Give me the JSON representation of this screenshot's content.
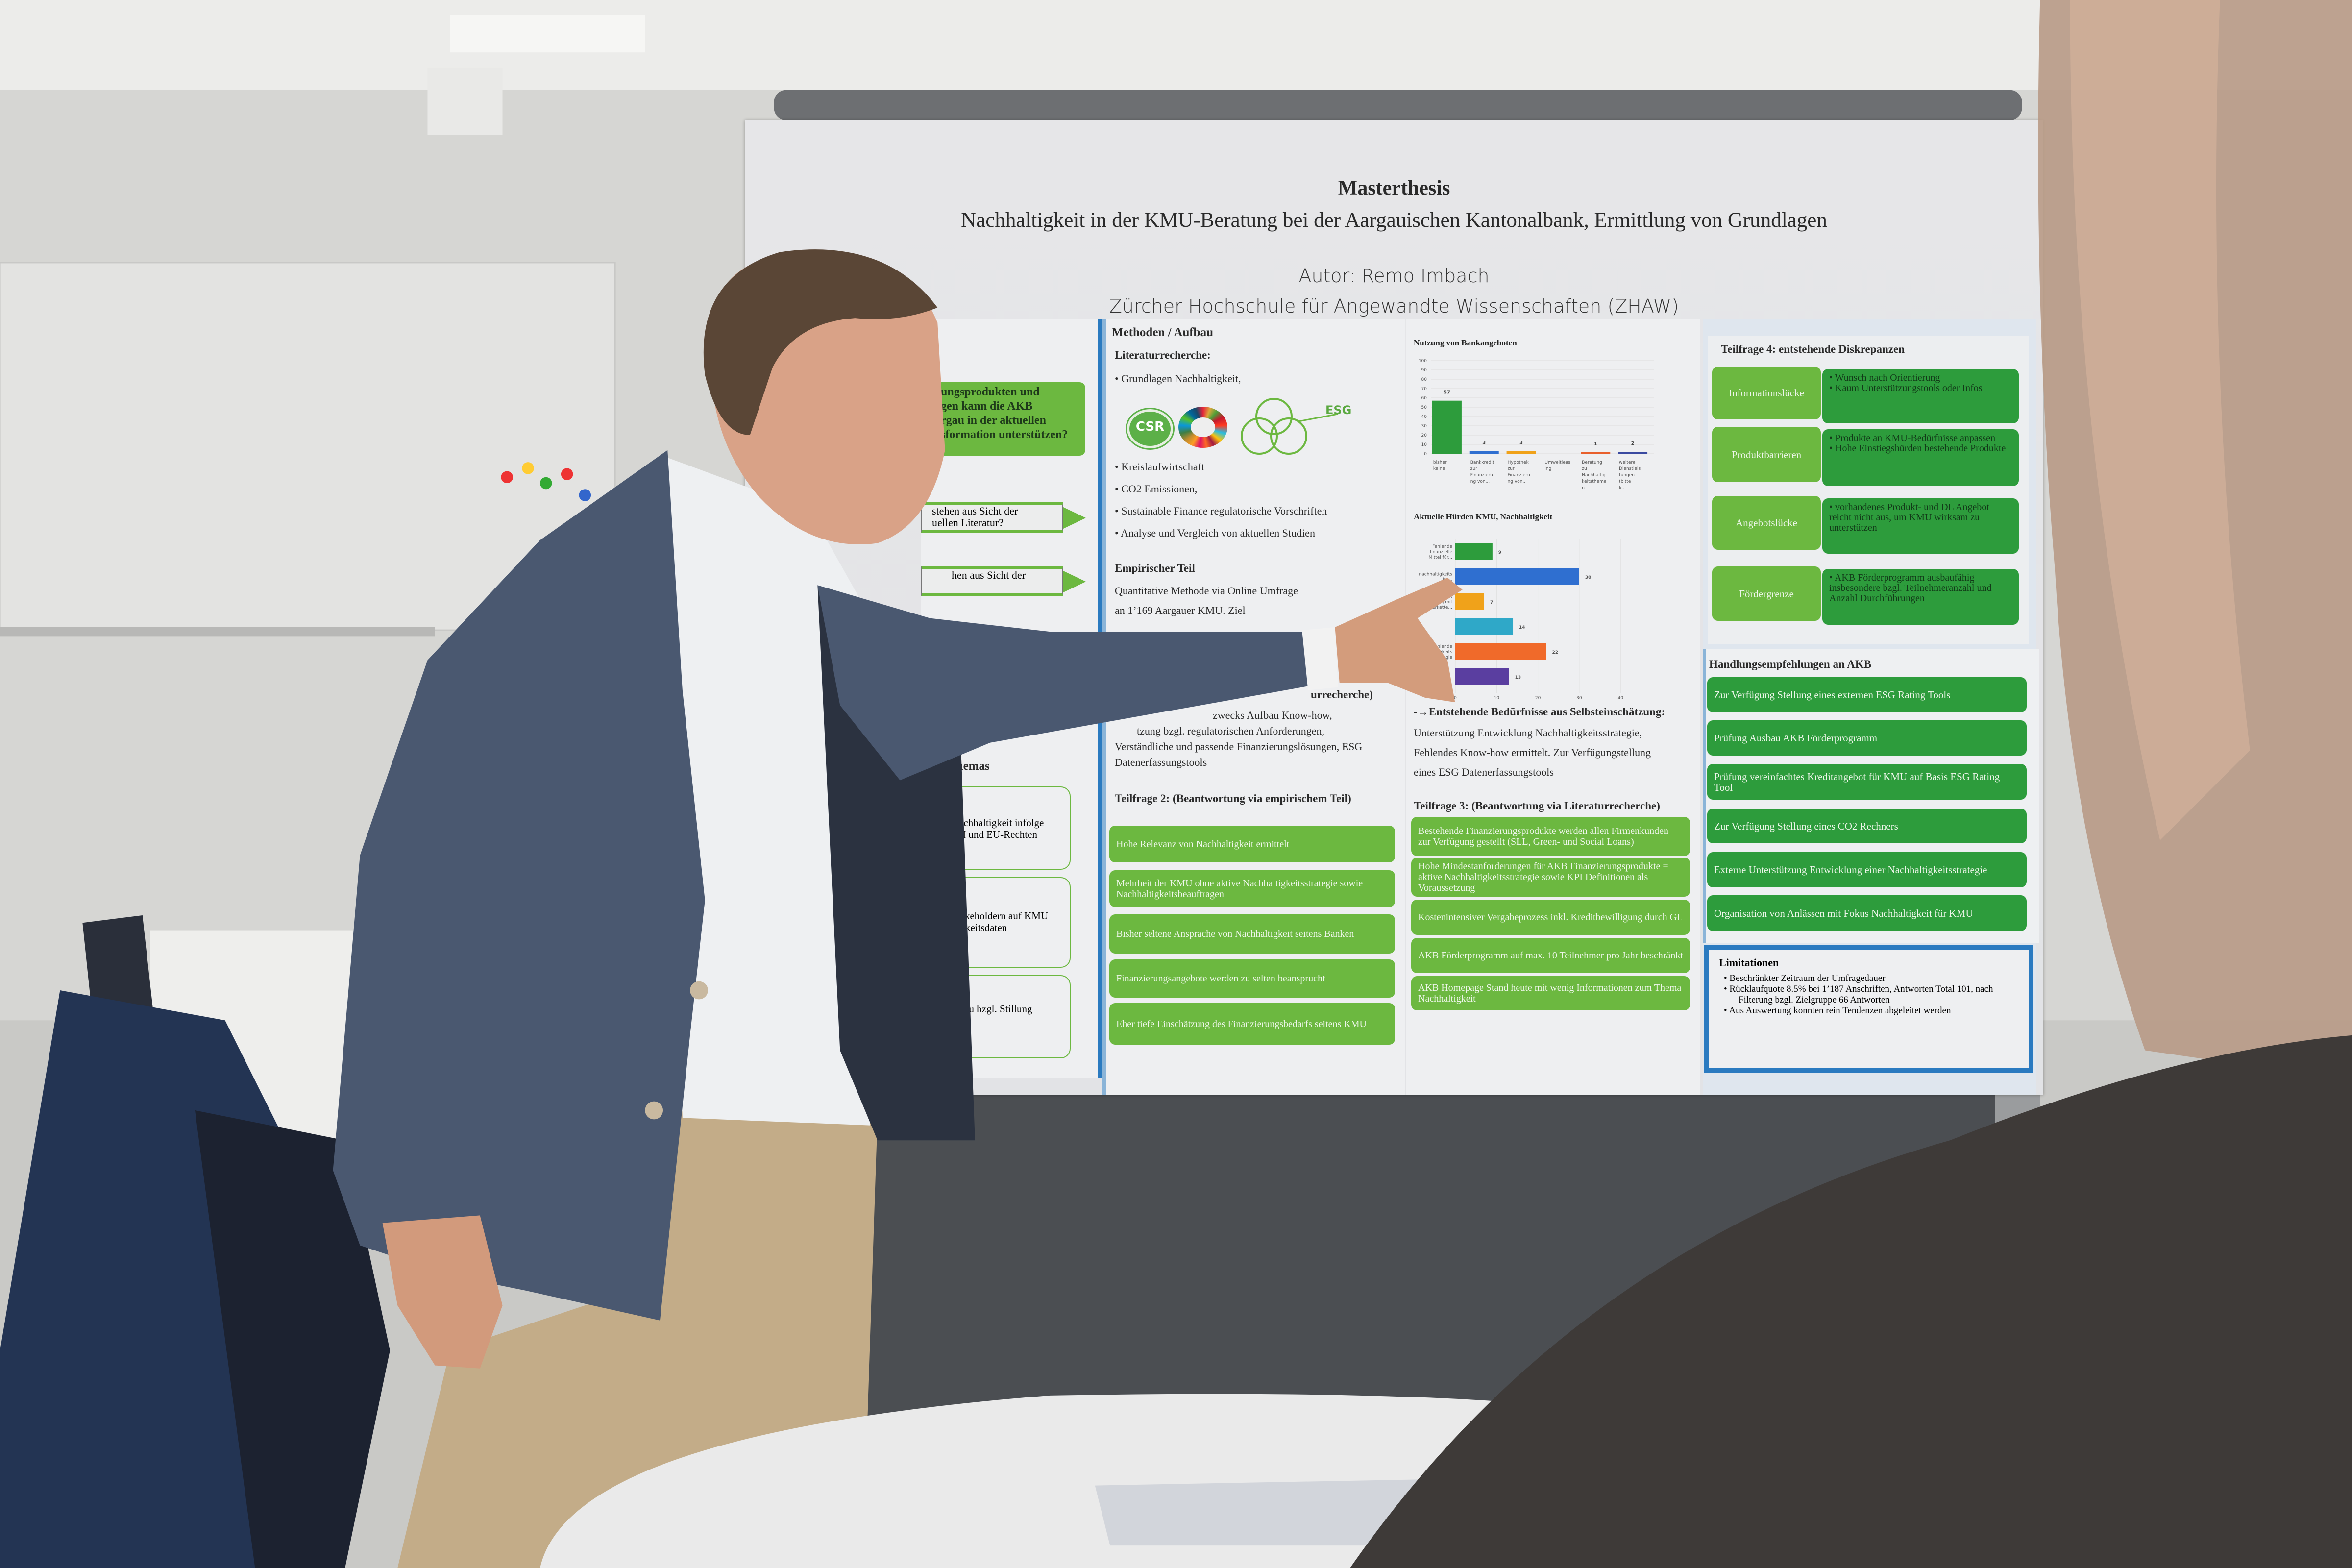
{
  "scene": {
    "description_colors": {
      "wall": "#d9d9d7",
      "board_frame": "#4b4e52",
      "jacket": "#46546a",
      "pants": "#c3ac88",
      "accent_green": "#2d9c3c",
      "accent_light_green": "#6cb840",
      "accent_blue": "#2a7ac0"
    }
  },
  "poster": {
    "title": "Masterthesis",
    "subtitle": "Nachhaltigkeit in der KMU-Beratung bei der Aargauischen Kantonalbank, Ermittlung von Grundlagen",
    "author": "Autor: Remo Imbach",
    "institution": "Zürcher Hochschule für Angewandte Wissenschaften (ZHAW)",
    "left": {
      "question_lines": [
        "ungsprodukten und",
        "gen kann die AKB",
        "rgau in der aktuellen",
        "sformation unterstützen?"
      ],
      "arrow1": [
        "stehen aus Sicht der",
        "uellen Literatur?"
      ],
      "arrow2": [
        "hen aus Sicht der"
      ],
      "section_title": "Themas",
      "boxes": [
        [
          "Nachhaltigkeit infolge",
          "CH und EU-Rechten"
        ],
        [
          "Stakeholdern auf KMU",
          "ltigkeitsdaten"
        ],
        [
          "lle zu bzgl. Stillung"
        ]
      ]
    },
    "methods": {
      "title": "Methoden / Aufbau",
      "lit_title": "Literaturrecherche:",
      "bullet_first": "Grundlagen Nachhaltigkeit,",
      "logos": {
        "csr": "CSR",
        "esg": "ESG"
      },
      "bullets": [
        "Kreislaufwirtschaft",
        "CO2 Emissionen,",
        "Sustainable Finance regulatorische Vorschriften",
        "Analyse und Vergleich von aktuellen Studien"
      ],
      "emp_title": "Empirischer Teil",
      "emp_lines": [
        "Quantitative Methode via Online Umfrage",
        "an 1’169 Aargauer KMU. Ziel"
      ],
      "tf1_lines": [
        "urrecherche)",
        "zwecks Aufbau Know-how,",
        "tzung bzgl. regulatorischen Anforderungen,",
        "Verständliche und passende Finanzierungslösungen, ESG",
        "Datenerfassungstools"
      ],
      "tf2_title": "Teilfrage 2: (Beantwortung via empirischem Teil)",
      "tf2_boxes": [
        "Hohe Relevanz von Nachhaltigkeit ermittelt",
        "Mehrheit der KMU ohne aktive Nachhaltigkeitsstrategie sowie Nachhaltigkeitsbeauftragen",
        "Bisher seltene Ansprache von Nachhaltigkeit seitens Banken",
        "Finanzierungsangebote werden zu selten beansprucht",
        "Eher tiefe Einschätzung des Finanzierungsbedarfs seitens KMU"
      ]
    },
    "results": {
      "needs_title": "-→Entstehende Bedürfnisse aus Selbsteinschätzung:",
      "needs_lines": [
        "Unterstützung Entwicklung Nachhaltigkeitsstrategie,",
        "Fehlendes Know-how ermittelt. Zur Verfügungstellung",
        "eines ESG Datenerfassungstools"
      ],
      "tf3_title": "Teilfrage 3: (Beantwortung via Literaturrecherche)",
      "tf3_boxes": [
        "Bestehende Finanzierungsprodukte werden allen Firmenkunden zur Verfügung gestellt (SLL, Green- und Social Loans)",
        "Hohe Mindestanforderungen für AKB Finanzierungsprodukte = aktive Nachhaltigkeitsstrategie sowie KPI Definitionen als Voraussetzung",
        "Kostenintensiver Vergabeprozess inkl. Kreditbewilligung durch GL",
        "AKB Förderprogramm auf max. 10 Teilnehmer pro Jahr beschränkt",
        "AKB Homepage Stand heute mit wenig Informationen zum Thema Nachhaltigkeit"
      ]
    },
    "right": {
      "tf4_title": "Teilfrage 4: entstehende Diskrepanzen",
      "gaps": [
        {
          "label": "Informationslücke",
          "points": [
            "Wunsch nach Orientierung",
            "Kaum Unterstützungstools oder Infos"
          ]
        },
        {
          "label": "Produktbarrieren",
          "points": [
            "Produkte an KMU-Bedürfnisse anpassen",
            "Hohe Einstiegshürden bestehende Produkte"
          ]
        },
        {
          "label": "Angebotslücke",
          "points": [
            "vorhandenes Produkt- und DL Angebot reicht nicht aus, um KMU wirksam zu unterstützen"
          ]
        },
        {
          "label": "Fördergrenze",
          "points": [
            "AKB Förderprogramm ausbaufähig insbesondere bzgl. Teilnehmeranzahl und Anzahl Durchführungen"
          ]
        }
      ],
      "rec_title": "Handlungsempfehlungen an AKB",
      "recs": [
        "Zur Verfügung Stellung eines externen ESG Rating Tools",
        "Prüfung Ausbau AKB Förderprogramm",
        "Prüfung vereinfachtes Kreditangebot für KMU auf Basis ESG Rating Tool",
        "Zur Verfügung Stellung eines CO2 Rechners",
        "Externe Unterstützung Entwicklung einer Nachhaltigkeitsstrategie",
        "Organisation von Anlässen mit Fokus Nachhaltigkeit für KMU"
      ],
      "lim_title": "Limitationen",
      "lims": [
        "Beschränkter Zeitraum der Umfragedauer",
        "Rücklaufquote 8.5% bei 1’187 Anschriften, Antworten Total 101, nach Filterung bzgl. Zielgruppe 66 Antworten",
        "Aus Auswertung konnten rein Tendenzen abgeleitet werden"
      ]
    }
  },
  "chart_data": [
    {
      "type": "bar",
      "title": "Nutzung von Bankangeboten",
      "categories": [
        "bisher keine",
        "Bankkredit zur Finanzierung von...",
        "Hypothek zur Finanzierung von...",
        "Umweltleasing",
        "Beratung zu Nachhaltigkeitsthemen",
        "weitere Dienstleistungen (bitte k..."
      ],
      "values": [
        57,
        3,
        3,
        0,
        1,
        2
      ],
      "colors": [
        "#2d9c3c",
        "#2f6fd0",
        "#f0a21a",
        "#2fa8c8",
        "#e8602c",
        "#3a4aa0"
      ],
      "ylim": [
        0,
        100
      ],
      "yticks": [
        0,
        10,
        20,
        30,
        40,
        50,
        60,
        70,
        80,
        90,
        100
      ],
      "grid": true
    },
    {
      "type": "bar",
      "orientation": "horizontal",
      "title": "Aktuelle Hürden KMU, Nachhaltigkeit",
      "categories": [
        "Fehlende finanzielle Mittel für...",
        "nachhaltigkeits be...",
        "...erheit ...gang mit ...ieferkette...",
        "",
        "fehlende Nachhaltigkeits strategie",
        ""
      ],
      "values": [
        9,
        30,
        7,
        14,
        22,
        13
      ],
      "colors": [
        "#2d9c3c",
        "#2f6fd0",
        "#f0a21a",
        "#2fa8c8",
        "#f06a2a",
        "#5a3ea0"
      ],
      "xlim": [
        0,
        40
      ],
      "xticks": [
        0,
        10,
        20,
        30,
        40
      ],
      "grid": true
    }
  ]
}
